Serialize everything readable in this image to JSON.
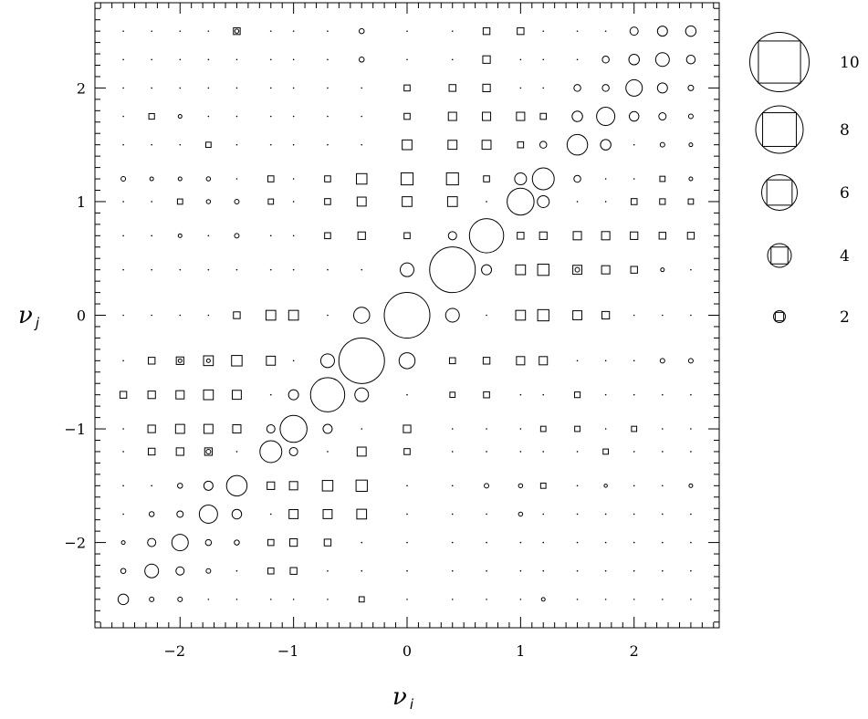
{
  "chart_data": {
    "type": "scatter",
    "title": "",
    "xlabel": {
      "symbol": "ν",
      "subscript": "i"
    },
    "ylabel": {
      "symbol": "ν",
      "subscript": "j"
    },
    "xlim": [
      -2.75,
      2.75
    ],
    "ylim": [
      -2.75,
      2.75
    ],
    "grid": false,
    "xticks": [
      -2,
      -1,
      0,
      1,
      2
    ],
    "yticks": [
      -2,
      -1,
      0,
      1,
      2
    ],
    "xtick_labels": [
      "−2",
      "−1",
      "0",
      "1",
      "2"
    ],
    "ytick_labels": [
      "−2",
      "−1",
      "0",
      "1",
      "2"
    ],
    "levels": [
      -2.5,
      -2.25,
      -2.0,
      -1.75,
      -1.5,
      -1.2,
      -1.0,
      -0.7,
      -0.4,
      0.0,
      0.4,
      0.7,
      1.0,
      1.2,
      1.5,
      1.75,
      2.0,
      2.25,
      2.5
    ],
    "encoding": "marker size by magnitude",
    "series": [
      {
        "marker": "circle",
        "points": [
          [
            0.0,
            0.0,
            10
          ],
          [
            -0.4,
            -0.4,
            10
          ],
          [
            0.4,
            0.4,
            10
          ],
          [
            -0.7,
            -0.7,
            7.5
          ],
          [
            0.7,
            0.7,
            7.5
          ],
          [
            -1.0,
            -1.0,
            5.9
          ],
          [
            1.0,
            1.0,
            5.9
          ],
          [
            -1.2,
            -1.2,
            4.8
          ],
          [
            1.2,
            1.2,
            4.8
          ],
          [
            -1.5,
            -1.5,
            4.5
          ],
          [
            1.5,
            1.5,
            4.5
          ],
          [
            -1.75,
            -1.75,
            4.0
          ],
          [
            1.75,
            1.75,
            4.0
          ],
          [
            -2.0,
            -2.0,
            3.6
          ],
          [
            2.0,
            2.0,
            3.6
          ],
          [
            -2.25,
            -2.25,
            3.0
          ],
          [
            2.25,
            2.25,
            3.0
          ],
          [
            -2.5,
            -2.5,
            2.3
          ],
          [
            2.5,
            2.5,
            2.3
          ],
          [
            -0.4,
            0.0,
            3.5
          ],
          [
            0.0,
            -0.4,
            3.5
          ],
          [
            0.4,
            0.0,
            3.0
          ],
          [
            0.0,
            0.4,
            3.0
          ],
          [
            -0.7,
            -0.4,
            3.0
          ],
          [
            -0.4,
            -0.7,
            3.0
          ],
          [
            0.7,
            0.4,
            2.2
          ],
          [
            0.4,
            0.7,
            1.8
          ],
          [
            -1.0,
            -0.7,
            2.2
          ],
          [
            -0.7,
            -1.0,
            2.0
          ],
          [
            1.0,
            1.2,
            2.6
          ],
          [
            1.2,
            1.0,
            2.6
          ],
          [
            -1.2,
            -1.0,
            1.8
          ],
          [
            -1.0,
            -1.2,
            1.8
          ],
          [
            -1.5,
            -1.75,
            2.1
          ],
          [
            -1.75,
            -1.5,
            2.0
          ],
          [
            1.5,
            1.75,
            2.3
          ],
          [
            1.75,
            1.5,
            2.3
          ],
          [
            -2.0,
            -2.25,
            1.8
          ],
          [
            -2.25,
            -2.0,
            1.8
          ],
          [
            2.0,
            2.25,
            2.3
          ],
          [
            2.25,
            2.0,
            2.2
          ],
          [
            2.25,
            2.5,
            2.2
          ],
          [
            2.5,
            2.25,
            1.9
          ],
          [
            1.2,
            1.5,
            1.5
          ],
          [
            1.5,
            1.2,
            1.5
          ],
          [
            2.0,
            1.75,
            2.1
          ],
          [
            1.75,
            2.0,
            1.5
          ],
          [
            2.0,
            2.5,
            1.8
          ],
          [
            1.75,
            2.25,
            1.5
          ],
          [
            2.25,
            1.75,
            1.6
          ],
          [
            1.5,
            2.0,
            1.5
          ],
          [
            -1.75,
            -2.0,
            1.3
          ],
          [
            -2.0,
            -1.75,
            1.4
          ],
          [
            -2.0,
            -1.5,
            1.1
          ],
          [
            -2.25,
            -1.75,
            1.1
          ],
          [
            -2.5,
            -2.25,
            1.1
          ],
          [
            -2.25,
            -2.5,
            1.0
          ],
          [
            -1.5,
            -2.0,
            1.1
          ],
          [
            -1.75,
            -2.25,
            1.0
          ],
          [
            -1.75,
            -1.2,
            1.0
          ],
          [
            -2.0,
            -2.5,
            1.0
          ],
          [
            -2.5,
            -2.0,
            0.8
          ],
          [
            -2.5,
            1.2,
            1.0
          ],
          [
            -2.25,
            1.2,
            0.8
          ],
          [
            -2.0,
            1.2,
            0.8
          ],
          [
            -1.75,
            1.2,
            0.9
          ],
          [
            -1.75,
            1.0,
            0.9
          ],
          [
            -1.5,
            1.0,
            1.0
          ],
          [
            -1.5,
            0.7,
            1.0
          ],
          [
            -2.0,
            0.7,
            0.8
          ],
          [
            -2.0,
            1.75,
            0.8
          ],
          [
            -2.0,
            -0.4,
            0.8
          ],
          [
            -1.75,
            -0.4,
            0.8
          ],
          [
            -0.4,
            2.5,
            1.1
          ],
          [
            -0.4,
            2.25,
            1.1
          ],
          [
            0.7,
            -1.5,
            1.0
          ],
          [
            1.0,
            -1.75,
            0.9
          ],
          [
            1.0,
            -1.5,
            0.9
          ],
          [
            1.2,
            -2.5,
            0.8
          ],
          [
            1.5,
            0.4,
            1.0
          ],
          [
            1.75,
            -1.5,
            0.7
          ],
          [
            2.25,
            -0.4,
            1.0
          ],
          [
            2.5,
            -0.4,
            1.0
          ],
          [
            2.25,
            1.5,
            1.0
          ],
          [
            2.5,
            2.0,
            1.2
          ],
          [
            2.5,
            1.2,
            0.8
          ],
          [
            2.5,
            1.5,
            0.8
          ],
          [
            2.5,
            1.75,
            1.0
          ],
          [
            2.5,
            -1.5,
            0.8
          ],
          [
            2.25,
            0.4,
            0.8
          ],
          [
            -1.5,
            2.5,
            0.9
          ]
        ]
      },
      {
        "marker": "square",
        "points": [
          [
            0.0,
            1.2,
            3.2
          ],
          [
            0.4,
            1.2,
            3.2
          ],
          [
            -0.4,
            1.2,
            2.8
          ],
          [
            0.0,
            1.0,
            2.6
          ],
          [
            0.4,
            1.0,
            2.6
          ],
          [
            -0.4,
            1.0,
            2.4
          ],
          [
            0.0,
            1.5,
            2.6
          ],
          [
            0.4,
            1.5,
            2.4
          ],
          [
            0.7,
            1.5,
            2.4
          ],
          [
            0.4,
            1.75,
            2.2
          ],
          [
            0.7,
            1.75,
            2.2
          ],
          [
            1.0,
            1.75,
            2.2
          ],
          [
            0.7,
            2.0,
            2.0
          ],
          [
            0.4,
            2.0,
            1.8
          ],
          [
            0.7,
            2.25,
            2.0
          ],
          [
            0.7,
            2.5,
            1.8
          ],
          [
            1.0,
            2.5,
            1.8
          ],
          [
            0.0,
            2.0,
            1.6
          ],
          [
            0.0,
            1.75,
            1.6
          ],
          [
            1.2,
            0.0,
            3.0
          ],
          [
            1.2,
            0.4,
            3.0
          ],
          [
            1.0,
            0.4,
            2.6
          ],
          [
            1.0,
            0.0,
            2.6
          ],
          [
            1.5,
            0.4,
            2.4
          ],
          [
            1.5,
            0.0,
            2.4
          ],
          [
            1.75,
            0.4,
            2.2
          ],
          [
            1.75,
            0.0,
            2.0
          ],
          [
            1.5,
            0.7,
            2.2
          ],
          [
            1.75,
            0.7,
            2.2
          ],
          [
            2.0,
            0.7,
            2.0
          ],
          [
            2.25,
            0.7,
            1.8
          ],
          [
            2.5,
            0.7,
            1.8
          ],
          [
            2.0,
            0.4,
            1.8
          ],
          [
            1.2,
            0.7,
            2.0
          ],
          [
            1.0,
            0.7,
            1.8
          ],
          [
            -1.5,
            -0.4,
            2.8
          ],
          [
            -1.75,
            -0.4,
            2.6
          ],
          [
            -1.2,
            -0.4,
            2.4
          ],
          [
            -2.0,
            -0.4,
            2.0
          ],
          [
            -1.75,
            -0.7,
            2.6
          ],
          [
            -1.5,
            -0.7,
            2.4
          ],
          [
            -2.0,
            -0.7,
            2.2
          ],
          [
            -2.25,
            -0.7,
            2.0
          ],
          [
            -2.5,
            -0.7,
            1.8
          ],
          [
            -1.75,
            -1.0,
            2.4
          ],
          [
            -2.0,
            -1.0,
            2.4
          ],
          [
            -1.5,
            -1.0,
            2.2
          ],
          [
            -2.25,
            -1.0,
            2.0
          ],
          [
            -2.25,
            -1.2,
            1.8
          ],
          [
            -2.0,
            -1.2,
            2.0
          ],
          [
            -1.75,
            -1.2,
            2.0
          ],
          [
            -1.2,
            0.0,
            2.6
          ],
          [
            -1.0,
            0.0,
            2.6
          ],
          [
            -1.5,
            0.0,
            1.8
          ],
          [
            -2.25,
            -0.4,
            1.8
          ],
          [
            -0.4,
            -1.5,
            3.0
          ],
          [
            -0.4,
            -1.75,
            2.6
          ],
          [
            -0.7,
            -1.5,
            2.8
          ],
          [
            -0.7,
            -1.75,
            2.4
          ],
          [
            -1.0,
            -1.75,
            2.4
          ],
          [
            -1.0,
            -1.5,
            2.2
          ],
          [
            -1.2,
            -1.5,
            2.0
          ],
          [
            -0.4,
            -1.2,
            2.4
          ],
          [
            -1.0,
            -2.0,
            2.0
          ],
          [
            -0.7,
            -2.0,
            1.8
          ],
          [
            -1.2,
            -2.0,
            1.6
          ],
          [
            -1.0,
            -2.25,
            1.8
          ],
          [
            -1.2,
            -2.25,
            1.6
          ],
          [
            -0.4,
            -2.5,
            1.4
          ],
          [
            0.0,
            -1.0,
            2.0
          ],
          [
            0.0,
            -1.2,
            1.6
          ],
          [
            0.4,
            -0.4,
            1.6
          ],
          [
            0.7,
            -0.4,
            1.8
          ],
          [
            1.0,
            -0.4,
            2.2
          ],
          [
            1.2,
            -0.4,
            2.2
          ],
          [
            0.7,
            -0.7,
            1.6
          ],
          [
            0.4,
            -0.7,
            1.4
          ],
          [
            -1.2,
            1.2,
            1.6
          ],
          [
            -1.2,
            1.0,
            1.4
          ],
          [
            -0.7,
            1.2,
            1.6
          ],
          [
            -0.7,
            1.0,
            1.6
          ],
          [
            -0.7,
            0.7,
            1.6
          ],
          [
            -0.4,
            0.7,
            2.0
          ],
          [
            0.0,
            0.7,
            1.6
          ],
          [
            0.7,
            1.2,
            1.6
          ],
          [
            1.0,
            1.5,
            1.6
          ],
          [
            1.2,
            1.75,
            1.6
          ],
          [
            -2.25,
            1.75,
            1.5
          ],
          [
            -2.0,
            1.0,
            1.4
          ],
          [
            -1.75,
            1.5,
            1.4
          ],
          [
            -1.5,
            2.5,
            1.8
          ],
          [
            1.2,
            -1.0,
            1.4
          ],
          [
            1.5,
            -1.0,
            1.4
          ],
          [
            1.5,
            -0.7,
            1.5
          ],
          [
            1.2,
            -1.5,
            1.4
          ],
          [
            2.0,
            -1.0,
            1.4
          ],
          [
            1.75,
            -1.2,
            1.4
          ],
          [
            2.0,
            1.0,
            1.6
          ],
          [
            2.25,
            1.0,
            1.5
          ],
          [
            2.5,
            1.0,
            1.4
          ],
          [
            2.25,
            1.2,
            1.4
          ]
        ]
      }
    ],
    "legend": {
      "placement": "right",
      "entries": [
        {
          "value": 10,
          "label": "10"
        },
        {
          "value": 8,
          "label": "8"
        },
        {
          "value": 6,
          "label": "6"
        },
        {
          "value": 4,
          "label": "4"
        },
        {
          "value": 2,
          "label": "2"
        }
      ]
    }
  }
}
